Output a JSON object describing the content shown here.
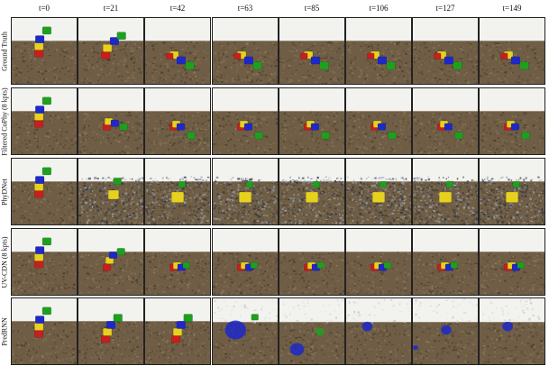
{
  "figure": {
    "time_labels": [
      "t=0",
      "t=21",
      "t=42",
      "t=63",
      "t=85",
      "t=106",
      "t=127",
      "t=149"
    ],
    "rows": [
      {
        "label": "Ground Truth"
      },
      {
        "label": "Filtered CoPhy (8 kpts)"
      },
      {
        "label": "PhyDNet"
      },
      {
        "label": "UV-CDN (8 kpts)"
      },
      {
        "label": "PredRNN"
      }
    ],
    "colors": {
      "red": "#c81e1e",
      "yellow": "#e6d21e",
      "blue": "#1e28c8",
      "green": "#1ea01e",
      "floor": "#6f5e45",
      "wall": "#f2f2ef"
    }
  }
}
